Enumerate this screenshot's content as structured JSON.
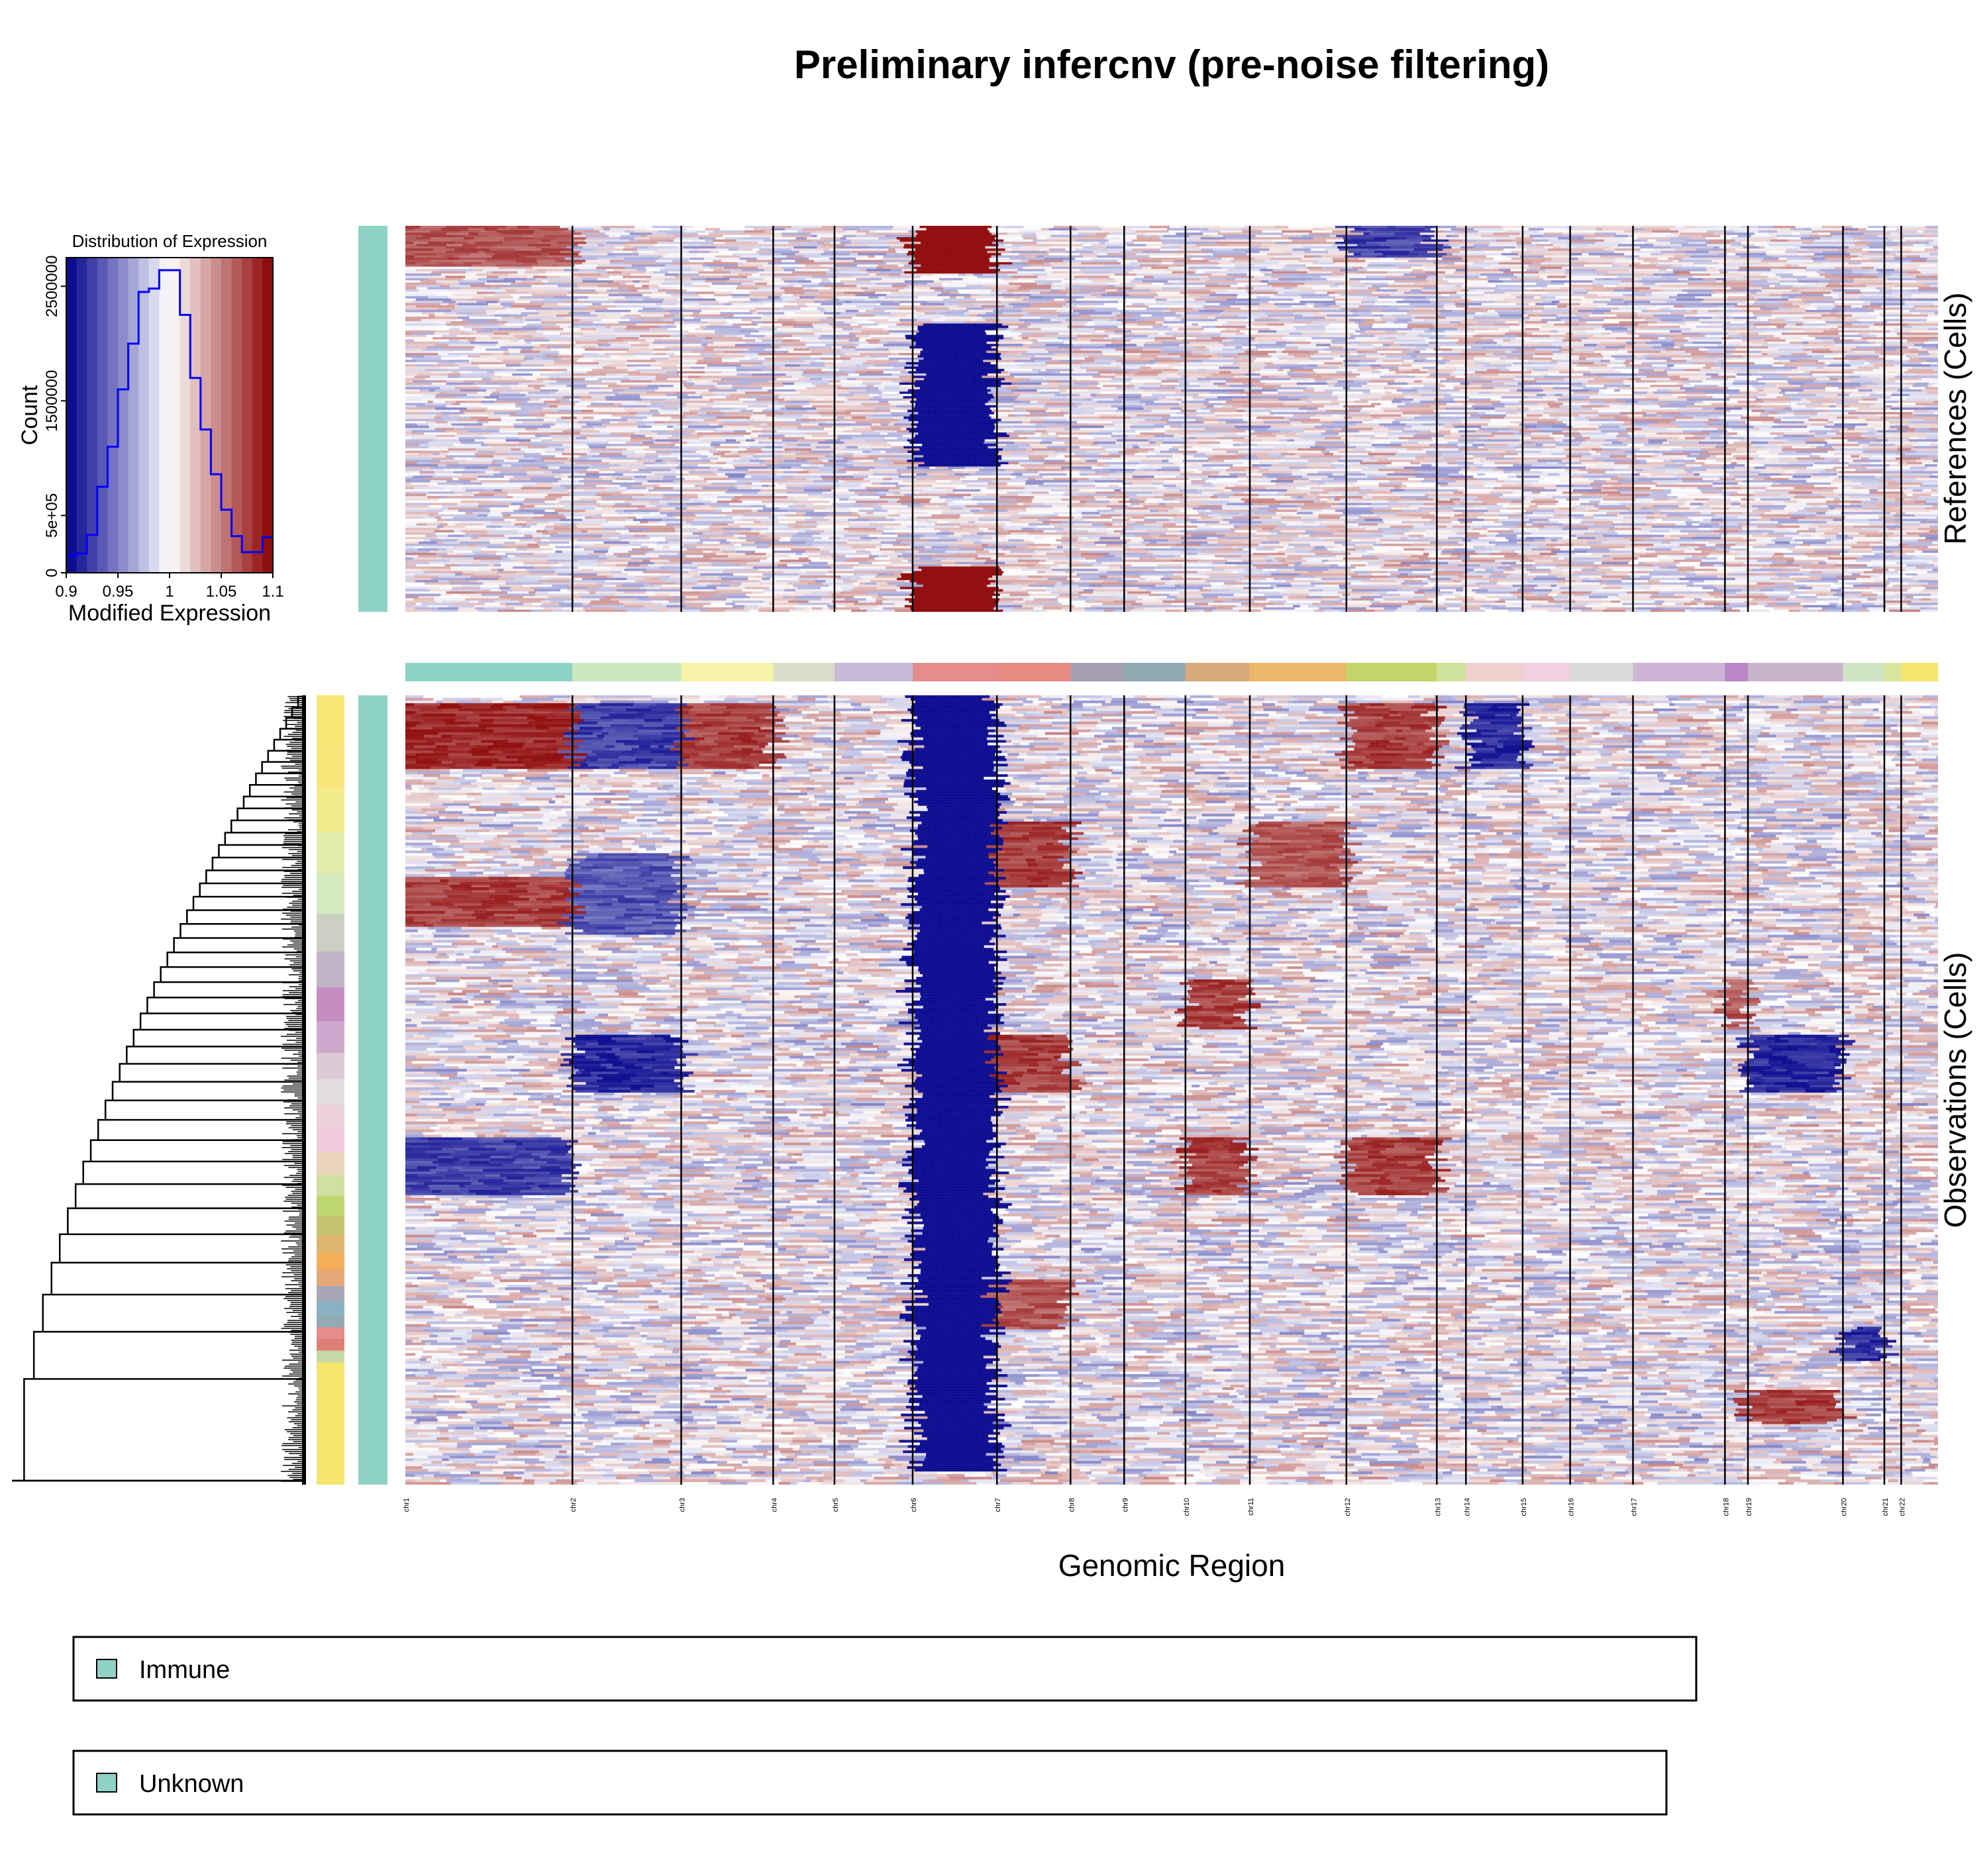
{
  "colors": {
    "cnv_low": "#00008b",
    "cnv_mid": "#ffffff",
    "cnv_high": "#8b0000",
    "hist_line": "#0000ff",
    "chromosome_line": "#000000",
    "cell_group": "#8fd3c7"
  },
  "chart_data": {
    "type": "heatmap",
    "title": "Preliminary infercnv (pre-noise filtering)",
    "xlabel": "Genomic Region",
    "reference_label": "References (Cells)",
    "observation_label": "Observations (Cells)",
    "chromosomes": [
      {
        "name": "chr1",
        "start": 0.0,
        "end": 0.109,
        "color": "#8fd3c7"
      },
      {
        "name": "chr2",
        "start": 0.109,
        "end": 0.18,
        "color": "#cde8be"
      },
      {
        "name": "chr3",
        "start": 0.18,
        "end": 0.24,
        "color": "#f7f3a8"
      },
      {
        "name": "chr4",
        "start": 0.24,
        "end": 0.28,
        "color": "#dcdccb"
      },
      {
        "name": "chr5",
        "start": 0.28,
        "end": 0.331,
        "color": "#c7b9d9"
      },
      {
        "name": "chr6",
        "start": 0.331,
        "end": 0.386,
        "color": "#e58c8c"
      },
      {
        "name": "chr7",
        "start": 0.386,
        "end": 0.434,
        "color": "#e98a82"
      },
      {
        "name": "chr8",
        "start": 0.434,
        "end": 0.469,
        "color": "#a7a0b3"
      },
      {
        "name": "chr9",
        "start": 0.469,
        "end": 0.509,
        "color": "#93aab5"
      },
      {
        "name": "chr10",
        "start": 0.509,
        "end": 0.551,
        "color": "#d9aa7c"
      },
      {
        "name": "chr11",
        "start": 0.551,
        "end": 0.614,
        "color": "#ebb86a"
      },
      {
        "name": "chr12",
        "start": 0.614,
        "end": 0.673,
        "color": "#c4d46a"
      },
      {
        "name": "chr13",
        "start": 0.673,
        "end": 0.692,
        "color": "#cde29a"
      },
      {
        "name": "chr14",
        "start": 0.692,
        "end": 0.729,
        "color": "#efd0cd"
      },
      {
        "name": "chr15",
        "start": 0.729,
        "end": 0.76,
        "color": "#f3cfe1"
      },
      {
        "name": "chr16",
        "start": 0.76,
        "end": 0.801,
        "color": "#dcdad8"
      },
      {
        "name": "chr17",
        "start": 0.801,
        "end": 0.861,
        "color": "#cdb4d4"
      },
      {
        "name": "chr18",
        "start": 0.861,
        "end": 0.876,
        "color": "#bb86c5"
      },
      {
        "name": "chr19",
        "start": 0.876,
        "end": 0.938,
        "color": "#c9b3cd"
      },
      {
        "name": "chr20",
        "start": 0.938,
        "end": 0.965,
        "color": "#cfe5c6"
      },
      {
        "name": "chr21",
        "start": 0.965,
        "end": 0.976,
        "color": "#dbe59e"
      },
      {
        "name": "chr22",
        "start": 0.976,
        "end": 1.0,
        "color": "#f6e56d"
      }
    ],
    "cnv_features": [
      {
        "panel": "ref",
        "chr": "chr6",
        "y0": 0.0,
        "y1": 0.12,
        "value": 1.12
      },
      {
        "panel": "ref",
        "chr": "chr6",
        "y0": 0.25,
        "y1": 0.62,
        "value": 0.88
      },
      {
        "panel": "ref",
        "chr": "chr6",
        "y0": 0.88,
        "y1": 1.0,
        "value": 1.12
      },
      {
        "panel": "ref",
        "chr": "chr1",
        "y0": 0.0,
        "y1": 0.1,
        "value": 1.07
      },
      {
        "panel": "ref",
        "chr": "chr12",
        "y0": 0.0,
        "y1": 0.08,
        "value": 0.92
      },
      {
        "panel": "obs",
        "chr": "chr6",
        "y0": 0.0,
        "y1": 0.98,
        "value": 0.88
      },
      {
        "panel": "obs",
        "chr": "chr1",
        "y0": 0.01,
        "y1": 0.09,
        "value": 1.09
      },
      {
        "panel": "obs",
        "chr": "chr2",
        "y0": 0.01,
        "y1": 0.09,
        "value": 0.92
      },
      {
        "panel": "obs",
        "chr": "chr3",
        "y0": 0.01,
        "y1": 0.09,
        "value": 1.08
      },
      {
        "panel": "obs",
        "chr": "chr12",
        "y0": 0.01,
        "y1": 0.09,
        "value": 1.08
      },
      {
        "panel": "obs",
        "chr": "chr14",
        "y0": 0.01,
        "y1": 0.09,
        "value": 0.91
      },
      {
        "panel": "obs",
        "chr": "chr7",
        "y0": 0.16,
        "y1": 0.24,
        "value": 1.08
      },
      {
        "panel": "obs",
        "chr": "chr11",
        "y0": 0.16,
        "y1": 0.24,
        "value": 1.07
      },
      {
        "panel": "obs",
        "chr": "chr1",
        "y0": 0.23,
        "y1": 0.29,
        "value": 1.08
      },
      {
        "panel": "obs",
        "chr": "chr2",
        "y0": 0.2,
        "y1": 0.3,
        "value": 0.93
      },
      {
        "panel": "obs",
        "chr": "chr10",
        "y0": 0.36,
        "y1": 0.42,
        "value": 1.08
      },
      {
        "panel": "obs",
        "chr": "chr18",
        "y0": 0.36,
        "y1": 0.42,
        "value": 1.07
      },
      {
        "panel": "obs",
        "chr": "chr2",
        "y0": 0.43,
        "y1": 0.5,
        "value": 0.91
      },
      {
        "panel": "obs",
        "chr": "chr7",
        "y0": 0.43,
        "y1": 0.5,
        "value": 1.08
      },
      {
        "panel": "obs",
        "chr": "chr19",
        "y0": 0.43,
        "y1": 0.5,
        "value": 0.91
      },
      {
        "panel": "obs",
        "chr": "chr1",
        "y0": 0.56,
        "y1": 0.63,
        "value": 0.92
      },
      {
        "panel": "obs",
        "chr": "chr10",
        "y0": 0.56,
        "y1": 0.63,
        "value": 1.08
      },
      {
        "panel": "obs",
        "chr": "chr12",
        "y0": 0.56,
        "y1": 0.63,
        "value": 1.08
      },
      {
        "panel": "obs",
        "chr": "chr7",
        "y0": 0.74,
        "y1": 0.8,
        "value": 1.07
      },
      {
        "panel": "obs",
        "chr": "chr20",
        "y0": 0.8,
        "y1": 0.84,
        "value": 0.91
      },
      {
        "panel": "obs",
        "chr": "chr19",
        "y0": 0.88,
        "y1": 0.92,
        "value": 1.08
      }
    ],
    "histogram": {
      "title": "Distribution of Expression",
      "xlabel": "Modified Expression",
      "ylabel": "Count",
      "xlim": [
        0.9,
        1.1
      ],
      "ylim": [
        0,
        2750000
      ],
      "xticks": [
        "0.9",
        "0.95",
        "1",
        "1.05",
        "1.1"
      ],
      "yticks": [
        "0",
        "5e+05",
        "1500000",
        "2500000"
      ],
      "bin_edges": [
        0.9,
        0.91,
        0.92,
        0.93,
        0.94,
        0.95,
        0.96,
        0.97,
        0.98,
        0.99,
        1.0,
        1.01,
        1.02,
        1.03,
        1.04,
        1.05,
        1.06,
        1.07,
        1.08,
        1.09,
        1.1
      ],
      "counts": [
        150000,
        170000,
        330000,
        750000,
        1100000,
        1600000,
        2000000,
        2450000,
        2480000,
        2640000,
        2640000,
        2250000,
        1700000,
        1250000,
        860000,
        550000,
        320000,
        180000,
        180000,
        310000
      ]
    },
    "legend": [
      {
        "label": "Immune",
        "color": "#8fd3c7"
      },
      {
        "label": "Unknown",
        "color": "#8fd3c7"
      }
    ]
  }
}
